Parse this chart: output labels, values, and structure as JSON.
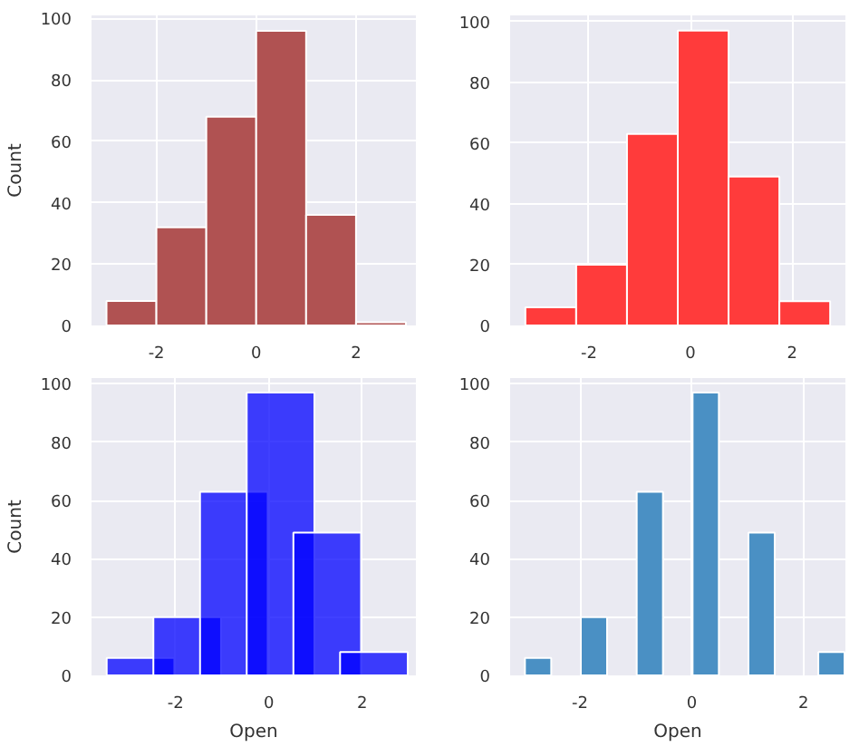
{
  "chart_data": [
    {
      "type": "histogram",
      "bins": [
        -3,
        -2,
        -1,
        0,
        1,
        2,
        3
      ],
      "values": [
        8,
        32,
        68,
        96,
        36,
        1
      ],
      "color": "#b05252",
      "ylabel": "Count",
      "xlim": [
        -3.3,
        3.2
      ],
      "ylim": [
        0,
        101
      ],
      "xticks": [
        -2,
        0,
        2
      ],
      "yticks": [
        0,
        20,
        40,
        60,
        80,
        100
      ],
      "grid": true
    },
    {
      "type": "histogram",
      "bins": [
        -3.25,
        -2.25,
        -1.25,
        -0.25,
        0.75,
        1.75,
        2.75
      ],
      "values": [
        6,
        20,
        63,
        97,
        49,
        8
      ],
      "color": "#ff3b3b",
      "xlim": [
        -3.55,
        3.05
      ],
      "ylim": [
        0,
        102
      ],
      "xticks": [
        -2,
        0,
        2
      ],
      "yticks": [
        0,
        20,
        40,
        60,
        80,
        100
      ],
      "grid": true
    },
    {
      "type": "bar",
      "x": [
        -2.75,
        -1.75,
        -0.75,
        0.25,
        1.25,
        2.25
      ],
      "values": [
        6,
        20,
        63,
        97,
        49,
        8
      ],
      "color": "#0000ff",
      "xlabel": "Open",
      "ylabel": "Count",
      "xlim": [
        -3.8,
        3.15
      ],
      "ylim": [
        0,
        102
      ],
      "xticks": [
        -2,
        0,
        2
      ],
      "yticks": [
        0,
        20,
        40,
        60,
        80,
        100
      ],
      "grid": true
    },
    {
      "type": "bar",
      "x": [
        -2.75,
        -1.75,
        -0.75,
        0.25,
        1.25,
        2.5
      ],
      "values": [
        6,
        20,
        63,
        97,
        49,
        8
      ],
      "color": "#4a90c4",
      "xlabel": "Open",
      "xlim": [
        -3.25,
        2.75
      ],
      "ylim": [
        0,
        102
      ],
      "xticks": [
        -2,
        0,
        2
      ],
      "yticks": [
        0,
        20,
        40,
        60,
        80,
        100
      ],
      "grid": true
    }
  ]
}
